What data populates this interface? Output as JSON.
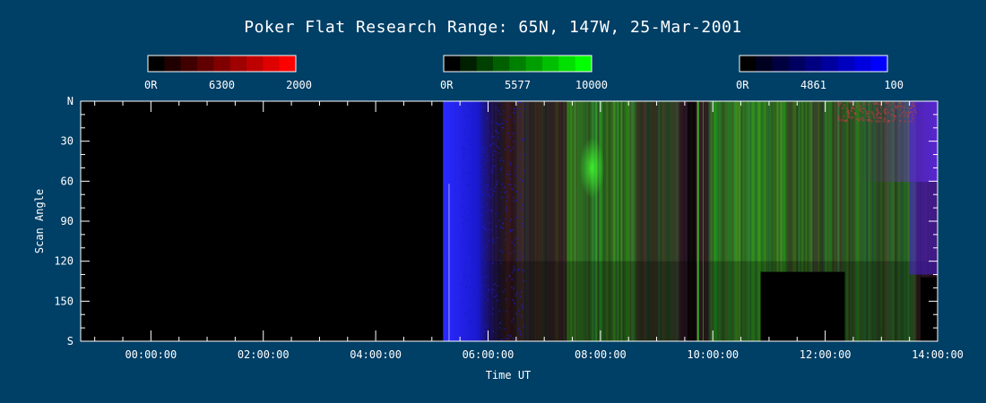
{
  "chart_data": {
    "type": "heatmap",
    "title": "Poker Flat Research Range: 65N, 147W, 25-Mar-2001",
    "xlabel": "Time UT",
    "ylabel": "Scan Angle",
    "x_range_hours": [
      -1.25,
      14.0
    ],
    "x_ticks": [
      "00:00:00",
      "02:00:00",
      "04:00:00",
      "06:00:00",
      "08:00:00",
      "10:00:00",
      "12:00:00",
      "14:00:00"
    ],
    "y_ticks": [
      "N",
      "30",
      "60",
      "90",
      "120",
      "150",
      "S"
    ],
    "y_tick_values": [
      0,
      30,
      60,
      90,
      120,
      150,
      180
    ],
    "colorbars": [
      {
        "name": "6300",
        "min_label": "0R",
        "mid_label": "6300",
        "max_label": "2000",
        "color": "#ff0000"
      },
      {
        "name": "5577",
        "min_label": "0R",
        "mid_label": "5577",
        "max_label": "10000",
        "color": "#00ff00"
      },
      {
        "name": "4861",
        "min_label": "0R",
        "mid_label": "4861",
        "max_label": "100",
        "color": "#0000ff"
      }
    ],
    "data_start_hour": 5.2,
    "data_end_hour": 14.0,
    "background_color": "#003f66"
  }
}
